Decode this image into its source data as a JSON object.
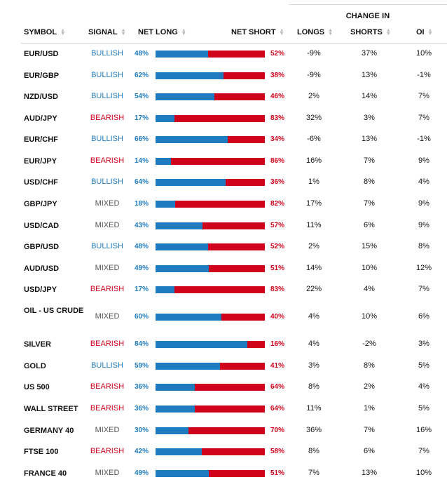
{
  "header": {
    "change_in": "CHANGE IN",
    "symbol": "SYMBOL",
    "signal": "SIGNAL",
    "net_long": "NET LONG",
    "net_short": "NET SHORT",
    "longs": "LONGS",
    "shorts": "SHORTS",
    "oi": "OI"
  },
  "colors": {
    "long": "#1f7bbf",
    "short": "#d0021b",
    "mixed": "#555555"
  },
  "rows": [
    {
      "symbol": "EUR/USD",
      "signal": "BULLISH",
      "long_pct": "48%",
      "short_pct": "52%",
      "long_value": 48,
      "change_longs": "-9%",
      "change_shorts": "37%",
      "change_oi": "10%"
    },
    {
      "symbol": "EUR/GBP",
      "signal": "BULLISH",
      "long_pct": "62%",
      "short_pct": "38%",
      "long_value": 62,
      "change_longs": "-9%",
      "change_shorts": "13%",
      "change_oi": "-1%"
    },
    {
      "symbol": "NZD/USD",
      "signal": "BULLISH",
      "long_pct": "54%",
      "short_pct": "46%",
      "long_value": 54,
      "change_longs": "2%",
      "change_shorts": "14%",
      "change_oi": "7%"
    },
    {
      "symbol": "AUD/JPY",
      "signal": "BEARISH",
      "long_pct": "17%",
      "short_pct": "83%",
      "long_value": 17,
      "change_longs": "32%",
      "change_shorts": "3%",
      "change_oi": "7%"
    },
    {
      "symbol": "EUR/CHF",
      "signal": "BULLISH",
      "long_pct": "66%",
      "short_pct": "34%",
      "long_value": 66,
      "change_longs": "-6%",
      "change_shorts": "13%",
      "change_oi": "-1%"
    },
    {
      "symbol": "EUR/JPY",
      "signal": "BEARISH",
      "long_pct": "14%",
      "short_pct": "86%",
      "long_value": 14,
      "change_longs": "16%",
      "change_shorts": "7%",
      "change_oi": "9%"
    },
    {
      "symbol": "USD/CHF",
      "signal": "BULLISH",
      "long_pct": "64%",
      "short_pct": "36%",
      "long_value": 64,
      "change_longs": "1%",
      "change_shorts": "8%",
      "change_oi": "4%"
    },
    {
      "symbol": "GBP/JPY",
      "signal": "MIXED",
      "long_pct": "18%",
      "short_pct": "82%",
      "long_value": 18,
      "change_longs": "17%",
      "change_shorts": "7%",
      "change_oi": "9%"
    },
    {
      "symbol": "USD/CAD",
      "signal": "MIXED",
      "long_pct": "43%",
      "short_pct": "57%",
      "long_value": 43,
      "change_longs": "11%",
      "change_shorts": "6%",
      "change_oi": "9%"
    },
    {
      "symbol": "GBP/USD",
      "signal": "BULLISH",
      "long_pct": "48%",
      "short_pct": "52%",
      "long_value": 48,
      "change_longs": "2%",
      "change_shorts": "15%",
      "change_oi": "8%"
    },
    {
      "symbol": "AUD/USD",
      "signal": "MIXED",
      "long_pct": "49%",
      "short_pct": "51%",
      "long_value": 49,
      "change_longs": "14%",
      "change_shorts": "10%",
      "change_oi": "12%"
    },
    {
      "symbol": "USD/JPY",
      "signal": "BEARISH",
      "long_pct": "17%",
      "short_pct": "83%",
      "long_value": 17,
      "change_longs": "22%",
      "change_shorts": "4%",
      "change_oi": "7%"
    },
    {
      "symbol": "OIL - US CRUDE",
      "signal": "MIXED",
      "long_pct": "60%",
      "short_pct": "40%",
      "long_value": 60,
      "change_longs": "4%",
      "change_shorts": "10%",
      "change_oi": "6%"
    },
    {
      "symbol": "SILVER",
      "signal": "BEARISH",
      "long_pct": "84%",
      "short_pct": "16%",
      "long_value": 84,
      "change_longs": "4%",
      "change_shorts": "-2%",
      "change_oi": "3%"
    },
    {
      "symbol": "GOLD",
      "signal": "BULLISH",
      "long_pct": "59%",
      "short_pct": "41%",
      "long_value": 59,
      "change_longs": "3%",
      "change_shorts": "8%",
      "change_oi": "5%"
    },
    {
      "symbol": "US 500",
      "signal": "BEARISH",
      "long_pct": "36%",
      "short_pct": "64%",
      "long_value": 36,
      "change_longs": "8%",
      "change_shorts": "2%",
      "change_oi": "4%"
    },
    {
      "symbol": "WALL STREET",
      "signal": "BEARISH",
      "long_pct": "36%",
      "short_pct": "64%",
      "long_value": 36,
      "change_longs": "11%",
      "change_shorts": "1%",
      "change_oi": "5%"
    },
    {
      "symbol": "GERMANY 40",
      "signal": "MIXED",
      "long_pct": "30%",
      "short_pct": "70%",
      "long_value": 30,
      "change_longs": "36%",
      "change_shorts": "7%",
      "change_oi": "16%"
    },
    {
      "symbol": "FTSE 100",
      "signal": "BEARISH",
      "long_pct": "42%",
      "short_pct": "58%",
      "long_value": 42,
      "change_longs": "8%",
      "change_shorts": "6%",
      "change_oi": "7%"
    },
    {
      "symbol": "FRANCE 40",
      "signal": "MIXED",
      "long_pct": "49%",
      "short_pct": "51%",
      "long_value": 49,
      "change_longs": "7%",
      "change_shorts": "13%",
      "change_oi": "10%"
    }
  ]
}
